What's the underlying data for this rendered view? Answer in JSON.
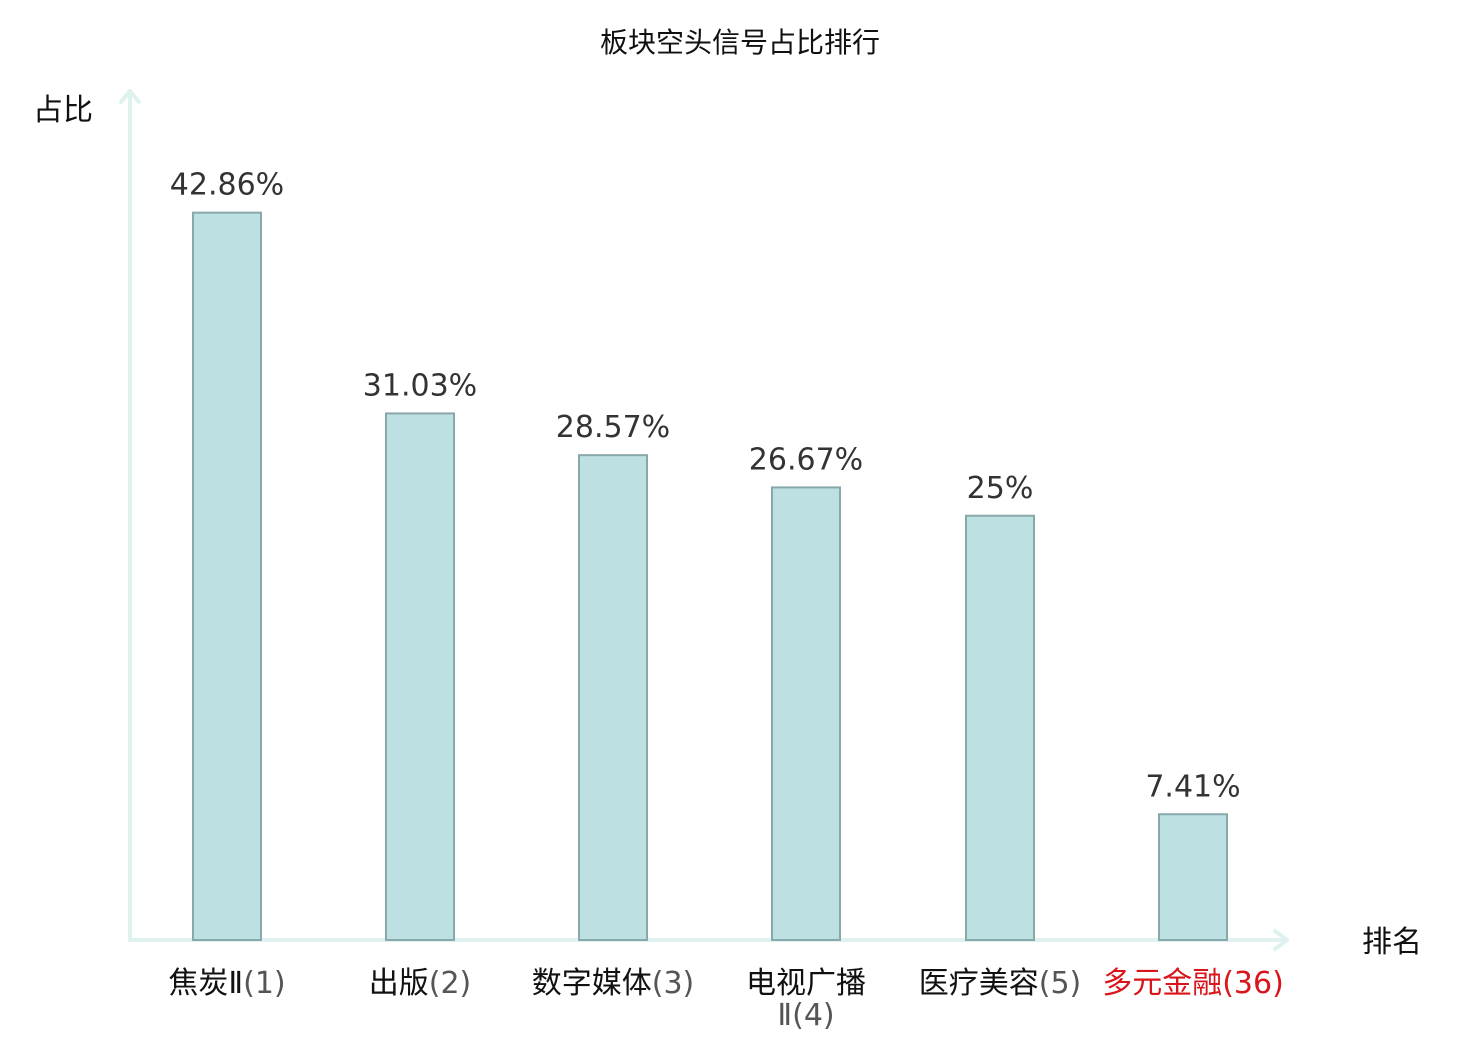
{
  "chart_data": {
    "type": "bar",
    "title": "板块空头信号占比排行",
    "ylabel": "占比",
    "xlabel": "排名",
    "ylim": [
      0,
      50
    ],
    "grid": false,
    "bars": [
      {
        "name": "焦炭Ⅱ",
        "rank": "(1)",
        "name_line2": "",
        "value": 42.86,
        "label": "42.86%",
        "highlight": false
      },
      {
        "name": "出版",
        "rank": "(2)",
        "name_line2": "",
        "value": 31.03,
        "label": "31.03%",
        "highlight": false
      },
      {
        "name": "数字媒体",
        "rank": "(3)",
        "name_line2": "",
        "value": 28.57,
        "label": "28.57%",
        "highlight": false
      },
      {
        "name": "电视广播",
        "rank": "(4)",
        "name_line2": "Ⅱ",
        "value": 26.67,
        "label": "26.67%",
        "highlight": false
      },
      {
        "name": "医疗美容",
        "rank": "(5)",
        "name_line2": "",
        "value": 25.0,
        "label": "25%",
        "highlight": false
      },
      {
        "name": "多元金融",
        "rank": "(36)",
        "name_line2": "",
        "value": 7.41,
        "label": "7.41%",
        "highlight": true
      }
    ],
    "colors": {
      "bar_fill": "#bde0e2",
      "bar_stroke": "#89a8a9",
      "axis": "#dff2ef",
      "text": "#111111",
      "value_text": "#333333",
      "rank_text": "#555555",
      "highlight": "#d9141b"
    }
  }
}
